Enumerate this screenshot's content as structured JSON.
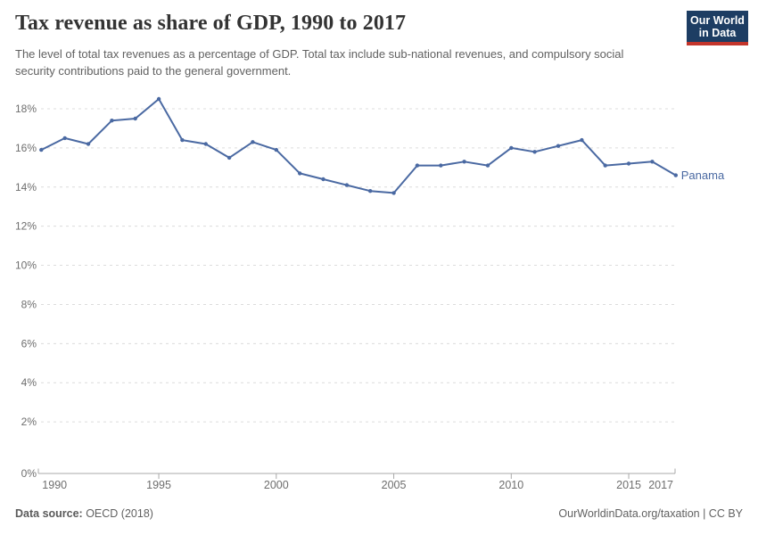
{
  "header": {
    "title": "Tax revenue as share of GDP, 1990 to 2017",
    "subtitle": "The level of total tax revenues as a percentage of GDP. Total tax include sub-national revenues, and compulsory social security contributions paid to the general government.",
    "logo": {
      "line1": "Our World",
      "line2": "in Data",
      "bg_color": "#1d3d63",
      "bar_color": "#c3352b"
    }
  },
  "footer": {
    "source_label": "Data source:",
    "source_value": " OECD (2018)",
    "right_text": "OurWorldinData.org/taxation | CC BY"
  },
  "chart_data": {
    "type": "line",
    "title": "Tax revenue as share of GDP, 1990 to 2017",
    "xlabel": "",
    "ylabel": "",
    "xlim": [
      1990,
      2017
    ],
    "ylim": [
      0,
      18
    ],
    "grid": "horizontal-dashed",
    "legend_position": "end-of-line-label",
    "x": [
      1990,
      1991,
      1992,
      1993,
      1994,
      1995,
      1996,
      1997,
      1998,
      1999,
      2000,
      2001,
      2002,
      2003,
      2004,
      2005,
      2006,
      2007,
      2008,
      2009,
      2010,
      2011,
      2012,
      2013,
      2014,
      2015,
      2016,
      2017
    ],
    "series": [
      {
        "name": "Panama",
        "color": "#4a69a2",
        "values": [
          15.9,
          16.5,
          16.2,
          17.4,
          17.5,
          18.5,
          16.4,
          16.2,
          15.5,
          16.3,
          15.9,
          14.7,
          14.4,
          14.1,
          13.8,
          13.7,
          15.1,
          15.1,
          15.3,
          15.1,
          16.0,
          15.8,
          16.1,
          16.4,
          15.1,
          15.2,
          15.3,
          14.6
        ]
      }
    ],
    "x_ticks": {
      "values": [
        1990,
        1995,
        2000,
        2005,
        2010,
        2015,
        2017
      ],
      "labels": [
        "1990",
        "1995",
        "2000",
        "2005",
        "2010",
        "2015",
        "2017"
      ]
    },
    "y_ticks": {
      "values": [
        0,
        2,
        4,
        6,
        8,
        10,
        12,
        14,
        16,
        18
      ],
      "labels": [
        "0%",
        "2%",
        "4%",
        "6%",
        "8%",
        "10%",
        "12%",
        "14%",
        "16%",
        "18%"
      ]
    },
    "style": {
      "grid_color": "#dcdcdc",
      "axis_color": "#a8a8a8",
      "tick_label_color": "#6e6e6e"
    }
  }
}
